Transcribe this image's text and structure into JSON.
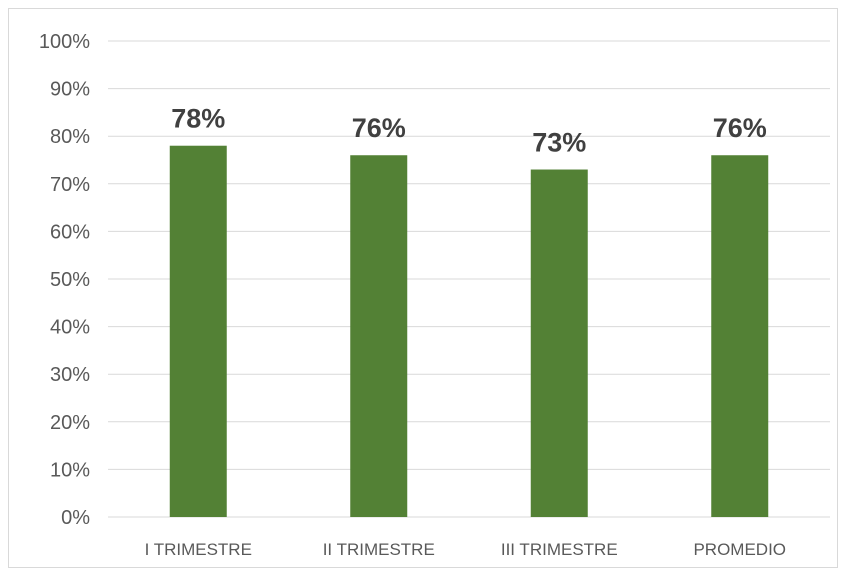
{
  "chart_data": {
    "type": "bar",
    "title": "",
    "xlabel": "",
    "ylabel": "",
    "categories": [
      "I TRIMESTRE",
      "II TRIMESTRE",
      "III TRIMESTRE",
      "PROMEDIO"
    ],
    "values": [
      78,
      76,
      73,
      76
    ],
    "data_labels": [
      "78%",
      "76%",
      "73%",
      "76%"
    ],
    "ylim": [
      0,
      100
    ],
    "y_ticks": [
      0,
      10,
      20,
      30,
      40,
      50,
      60,
      70,
      80,
      90,
      100
    ],
    "y_tick_labels": [
      "0%",
      "10%",
      "20%",
      "30%",
      "40%",
      "50%",
      "60%",
      "70%",
      "80%",
      "90%",
      "100%"
    ],
    "grid": true,
    "legend": "none",
    "colors": {
      "bar": "#538135",
      "grid": "#d9d9d9",
      "axis": "#d9d9d9"
    }
  }
}
